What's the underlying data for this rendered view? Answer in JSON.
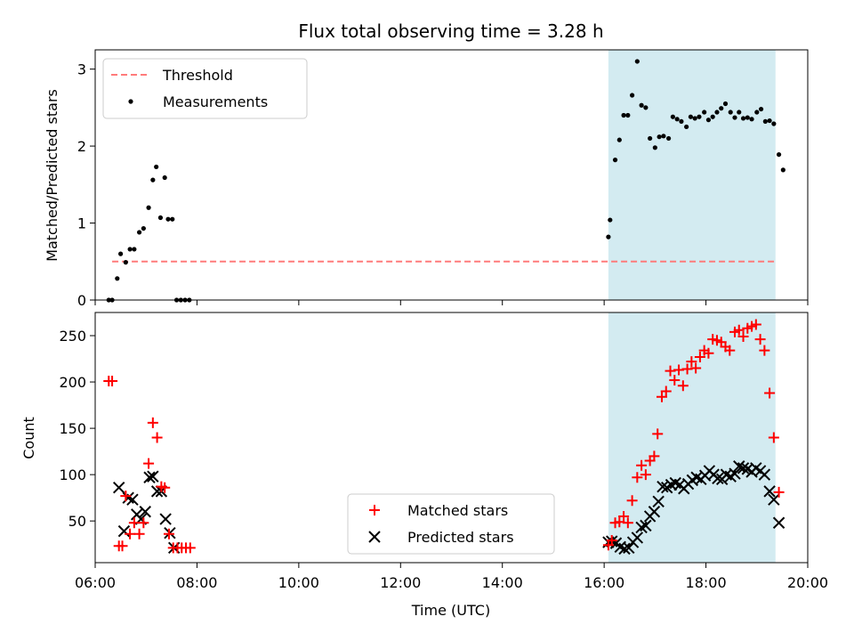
{
  "chart_data": {
    "title": "Flux total observing time = 3.28 h",
    "xlabel": "Time (UTC)",
    "xticks": [
      "06:00",
      "08:00",
      "10:00",
      "12:00",
      "14:00",
      "16:00",
      "18:00",
      "20:00"
    ],
    "xlim": [
      "06:00",
      "20:00"
    ],
    "highlight_span": {
      "start": "16:05",
      "end": "19:22",
      "color": "#d3ebf1"
    },
    "top": {
      "type": "scatter",
      "ylabel": "Matched/Predicted stars",
      "ylim": [
        0,
        3.25
      ],
      "yticks": [
        "0",
        "1",
        "2",
        "3"
      ],
      "legend": {
        "position": "top-left",
        "entries": [
          "Threshold",
          "Measurements"
        ]
      },
      "threshold": {
        "name": "Threshold",
        "value": 0.5,
        "x_start": "06:20",
        "x_end": "19:22",
        "color": "#ff7b7b"
      },
      "series": [
        {
          "name": "Measurements",
          "color": "#000000",
          "points": [
            [
              "06:16",
              0
            ],
            [
              "06:20",
              0
            ],
            [
              "06:26",
              0.28
            ],
            [
              "06:30",
              0.6
            ],
            [
              "06:36",
              0.49
            ],
            [
              "06:41",
              0.66
            ],
            [
              "06:46",
              0.66
            ],
            [
              "06:52",
              0.88
            ],
            [
              "06:57",
              0.93
            ],
            [
              "07:03",
              1.2
            ],
            [
              "07:08",
              1.56
            ],
            [
              "07:12",
              1.73
            ],
            [
              "07:17",
              1.07
            ],
            [
              "07:22",
              1.59
            ],
            [
              "07:26",
              1.05
            ],
            [
              "07:31",
              1.05
            ],
            [
              "07:36",
              0
            ],
            [
              "07:41",
              0
            ],
            [
              "07:46",
              0
            ],
            [
              "07:51",
              0
            ],
            [
              "16:05",
              0.82
            ],
            [
              "16:07",
              1.04
            ],
            [
              "16:13",
              1.82
            ],
            [
              "16:18",
              2.08
            ],
            [
              "16:23",
              2.4
            ],
            [
              "16:28",
              2.4
            ],
            [
              "16:33",
              2.66
            ],
            [
              "16:39",
              3.1
            ],
            [
              "16:44",
              2.53
            ],
            [
              "16:49",
              2.5
            ],
            [
              "16:54",
              2.1
            ],
            [
              "17:00",
              1.98
            ],
            [
              "17:05",
              2.12
            ],
            [
              "17:10",
              2.13
            ],
            [
              "17:16",
              2.1
            ],
            [
              "17:21",
              2.38
            ],
            [
              "17:26",
              2.35
            ],
            [
              "17:31",
              2.32
            ],
            [
              "17:37",
              2.25
            ],
            [
              "17:42",
              2.38
            ],
            [
              "17:47",
              2.36
            ],
            [
              "17:52",
              2.38
            ],
            [
              "17:58",
              2.44
            ],
            [
              "18:03",
              2.34
            ],
            [
              "18:08",
              2.38
            ],
            [
              "18:13",
              2.44
            ],
            [
              "18:18",
              2.49
            ],
            [
              "18:23",
              2.55
            ],
            [
              "18:29",
              2.44
            ],
            [
              "18:34",
              2.37
            ],
            [
              "18:39",
              2.44
            ],
            [
              "18:44",
              2.36
            ],
            [
              "18:49",
              2.37
            ],
            [
              "18:54",
              2.35
            ],
            [
              "19:00",
              2.44
            ],
            [
              "19:05",
              2.48
            ],
            [
              "19:10",
              2.32
            ],
            [
              "19:15",
              2.33
            ],
            [
              "19:20",
              2.29
            ],
            [
              "19:26",
              1.89
            ],
            [
              "19:31",
              1.69
            ]
          ]
        }
      ]
    },
    "bottom": {
      "type": "scatter",
      "ylabel": "Count",
      "ylim": [
        5,
        275
      ],
      "yticks": [
        "50",
        "100",
        "150",
        "200",
        "250"
      ],
      "legend": {
        "position": "bottom-center",
        "entries": [
          "Matched stars",
          "Predicted stars"
        ]
      },
      "series": [
        {
          "name": "Matched stars",
          "marker": "plus",
          "color": "#ff0000",
          "points": [
            [
              "06:16",
              201
            ],
            [
              "06:20",
              201
            ],
            [
              "06:28",
              23
            ],
            [
              "06:32",
              23
            ],
            [
              "06:36",
              77
            ],
            [
              "06:41",
              36
            ],
            [
              "06:46",
              48
            ],
            [
              "06:52",
              36
            ],
            [
              "06:57",
              48
            ],
            [
              "07:03",
              112
            ],
            [
              "07:08",
              156
            ],
            [
              "07:13",
              140
            ],
            [
              "07:18",
              87
            ],
            [
              "07:22",
              86
            ],
            [
              "07:27",
              36
            ],
            [
              "07:32",
              21
            ],
            [
              "07:37",
              21
            ],
            [
              "07:42",
              21
            ],
            [
              "07:47",
              21
            ],
            [
              "07:52",
              21
            ],
            [
              "16:05",
              24
            ],
            [
              "16:09",
              29
            ],
            [
              "16:13",
              48
            ],
            [
              "16:18",
              49
            ],
            [
              "16:23",
              55
            ],
            [
              "16:28",
              48
            ],
            [
              "16:33",
              72
            ],
            [
              "16:39",
              97
            ],
            [
              "16:44",
              110
            ],
            [
              "16:49",
              100
            ],
            [
              "16:54",
              115
            ],
            [
              "16:59",
              120
            ],
            [
              "17:03",
              144
            ],
            [
              "17:08",
              184
            ],
            [
              "17:13",
              190
            ],
            [
              "17:18",
              212
            ],
            [
              "17:23",
              202
            ],
            [
              "17:28",
              213
            ],
            [
              "17:33",
              196
            ],
            [
              "17:38",
              214
            ],
            [
              "17:43",
              222
            ],
            [
              "17:48",
              215
            ],
            [
              "17:53",
              227
            ],
            [
              "17:58",
              234
            ],
            [
              "18:03",
              231
            ],
            [
              "18:08",
              246
            ],
            [
              "18:13",
              245
            ],
            [
              "18:18",
              243
            ],
            [
              "18:23",
              238
            ],
            [
              "18:28",
              234
            ],
            [
              "18:34",
              254
            ],
            [
              "18:39",
              256
            ],
            [
              "18:44",
              249
            ],
            [
              "18:49",
              258
            ],
            [
              "18:54",
              260
            ],
            [
              "18:59",
              262
            ],
            [
              "19:04",
              246
            ],
            [
              "19:09",
              234
            ],
            [
              "19:15",
              188
            ],
            [
              "19:20",
              140
            ],
            [
              "19:26",
              81
            ]
          ]
        },
        {
          "name": "Predicted stars",
          "marker": "x",
          "color": "#000000",
          "points": [
            [
              "06:28",
              86
            ],
            [
              "06:34",
              39
            ],
            [
              "06:39",
              75
            ],
            [
              "06:44",
              73
            ],
            [
              "06:49",
              57
            ],
            [
              "06:54",
              52
            ],
            [
              "06:59",
              60
            ],
            [
              "07:04",
              97
            ],
            [
              "07:08",
              98
            ],
            [
              "07:13",
              82
            ],
            [
              "07:18",
              82
            ],
            [
              "07:23",
              52
            ],
            [
              "07:28",
              37
            ],
            [
              "07:33",
              21
            ],
            [
              "16:05",
              27
            ],
            [
              "16:09",
              28
            ],
            [
              "16:14",
              26
            ],
            [
              "16:19",
              22
            ],
            [
              "16:24",
              20
            ],
            [
              "16:29",
              21
            ],
            [
              "16:34",
              27
            ],
            [
              "16:39",
              32
            ],
            [
              "16:44",
              43
            ],
            [
              "16:49",
              45
            ],
            [
              "16:54",
              55
            ],
            [
              "16:59",
              60
            ],
            [
              "17:04",
              71
            ],
            [
              "17:09",
              87
            ],
            [
              "17:14",
              86
            ],
            [
              "17:19",
              89
            ],
            [
              "17:24",
              91
            ],
            [
              "17:29",
              89
            ],
            [
              "17:34",
              85
            ],
            [
              "17:39",
              90
            ],
            [
              "17:44",
              94
            ],
            [
              "17:49",
              97
            ],
            [
              "17:54",
              95
            ],
            [
              "17:59",
              99
            ],
            [
              "18:04",
              104
            ],
            [
              "18:09",
              100
            ],
            [
              "18:14",
              96
            ],
            [
              "18:19",
              95
            ],
            [
              "18:24",
              100
            ],
            [
              "18:29",
              98
            ],
            [
              "18:34",
              101
            ],
            [
              "18:39",
              109
            ],
            [
              "18:44",
              107
            ],
            [
              "18:49",
              106
            ],
            [
              "18:54",
              103
            ],
            [
              "18:59",
              107
            ],
            [
              "19:04",
              104
            ],
            [
              "19:09",
              100
            ],
            [
              "19:15",
              82
            ],
            [
              "19:20",
              73
            ],
            [
              "19:26",
              48
            ]
          ]
        }
      ]
    }
  }
}
